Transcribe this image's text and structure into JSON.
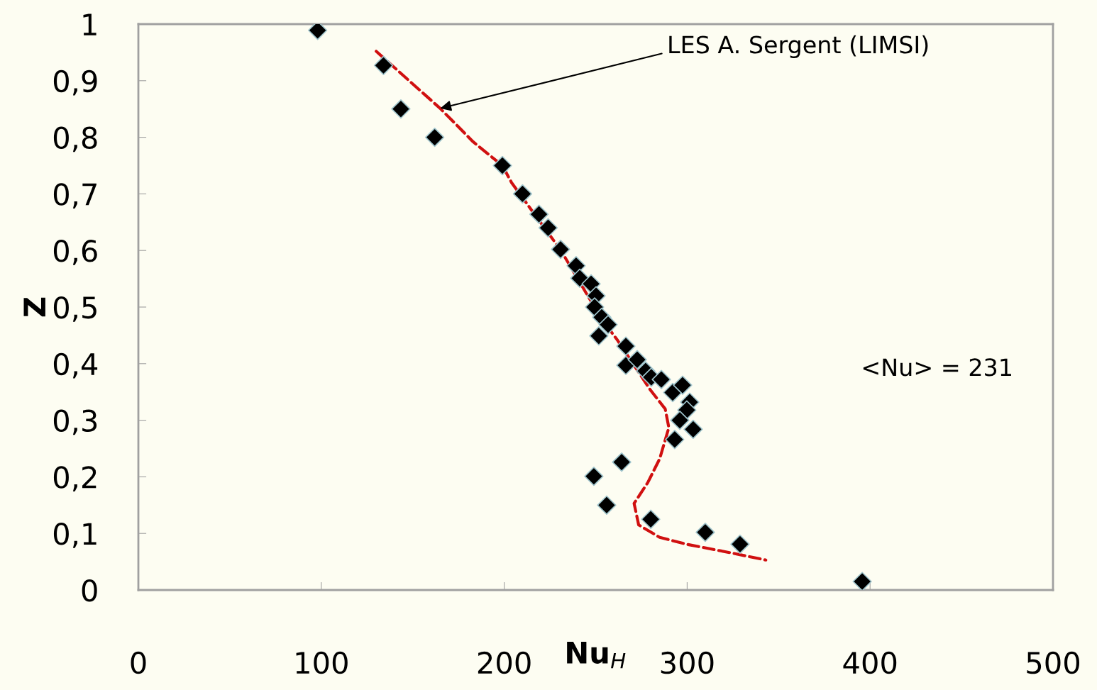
{
  "chart_data": {
    "type": "scatter",
    "xlabel": "Nu$_{H}$",
    "ylabel": "Z",
    "xlim": [
      0,
      500
    ],
    "ylim": [
      0,
      1
    ],
    "xticks": [
      0,
      100,
      200,
      300,
      400,
      500
    ],
    "yticks": [
      0,
      {
        "value": 0.1,
        "label": "0,1"
      },
      {
        "value": 0.2,
        "label": "0,2"
      },
      {
        "value": 0.3,
        "label": "0,3"
      },
      {
        "value": 0.4,
        "label": "0,4"
      },
      {
        "value": 0.5,
        "label": "0,5"
      },
      {
        "value": 0.6,
        "label": "0,6"
      },
      {
        "value": 0.7,
        "label": "0,7"
      },
      {
        "value": 0.8,
        "label": "0,8"
      },
      {
        "value": 0.9,
        "label": "0,9"
      },
      1
    ],
    "grid": false,
    "legend": false,
    "series": [
      {
        "marker": "diamond",
        "color": "#000000",
        "x": [
          98,
          134,
          143.5,
          162,
          199,
          210,
          219,
          224,
          230.8,
          239.3,
          241.3,
          247.5,
          250.2,
          249.4,
          253.3,
          256.8,
          251.7,
          266.5,
          266.5,
          272.7,
          277.3,
          280.4,
          285.9,
          292.1,
          297.5,
          301.4,
          299.8,
          296.0,
          303.3,
          293.2,
          264.2,
          249.0,
          256.0,
          280.1,
          309.9,
          328.9,
          395.7
        ],
        "values": [
          0.989,
          0.927,
          0.85,
          0.8,
          0.75,
          0.7,
          0.664,
          0.64,
          0.602,
          0.573,
          0.551,
          0.541,
          0.52,
          0.5,
          0.482,
          0.469,
          0.449,
          0.431,
          0.397,
          0.407,
          0.387,
          0.376,
          0.372,
          0.349,
          0.362,
          0.332,
          0.318,
          0.3,
          0.284,
          0.266,
          0.226,
          0.201,
          0.15,
          0.125,
          0.102,
          0.081,
          0.015
        ]
      },
      {
        "type": "line",
        "line_style": "dashed",
        "marker": "none",
        "color": "#d01010",
        "x": [
          130,
          165,
          183,
          199,
          204,
          231,
          253,
          262,
          280,
          288,
          290,
          285,
          278.5,
          271,
          273.5,
          285,
          299.5,
          325,
          343
        ],
        "values": [
          0.952,
          0.851,
          0.792,
          0.75,
          0.72,
          0.6,
          0.48,
          0.441,
          0.353,
          0.32,
          0.287,
          0.232,
          0.19,
          0.153,
          0.115,
          0.093,
          0.081,
          0.065,
          0.053
        ]
      }
    ],
    "annotations": [
      {
        "text": "LES A. Sergent (LIMSI)",
        "x": 165,
        "y": 0.851
      },
      "<Nu> = 231"
    ]
  }
}
